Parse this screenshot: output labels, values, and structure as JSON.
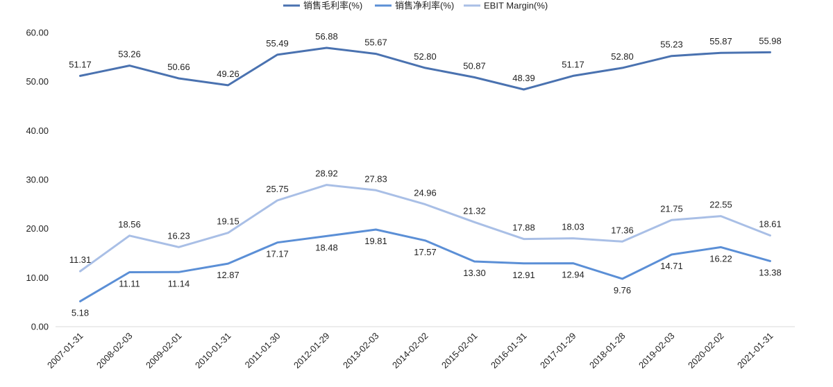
{
  "chart_data": {
    "type": "line",
    "categories": [
      "2007-01-31",
      "2008-02-03",
      "2009-02-01",
      "2010-01-31",
      "2011-01-30",
      "2012-01-29",
      "2013-02-03",
      "2014-02-02",
      "2015-02-01",
      "2016-01-31",
      "2017-01-29",
      "2018-01-28",
      "2019-02-03",
      "2020-02-02",
      "2021-01-31"
    ],
    "series": [
      {
        "name": "销售毛利率(%)",
        "color": "#4a72b0",
        "label_position": "above",
        "values": [
          51.17,
          53.26,
          50.66,
          49.26,
          55.49,
          56.88,
          55.67,
          52.8,
          50.87,
          48.39,
          51.17,
          52.8,
          55.23,
          55.87,
          55.98
        ],
        "labels": [
          "51.17",
          "53.26",
          "50.66",
          "49.26",
          "55.49",
          "56.88",
          "55.67",
          "52.80",
          "50.87",
          "48.39",
          "51.17",
          "52.80",
          "55.23",
          "55.87",
          "55.98"
        ]
      },
      {
        "name": "销售净利率(%)",
        "color": "#5b8fd6",
        "label_position": "below",
        "values": [
          5.18,
          11.11,
          11.14,
          12.87,
          17.17,
          18.48,
          19.81,
          17.57,
          13.3,
          12.91,
          12.94,
          9.76,
          14.71,
          16.22,
          13.38
        ],
        "labels": [
          "5.18",
          "11.11",
          "11.14",
          "12.87",
          "17.17",
          "18.48",
          "19.81",
          "17.57",
          "13.30",
          "12.91",
          "12.94",
          "9.76",
          "14.71",
          "16.22",
          "13.38"
        ]
      },
      {
        "name": "EBIT Margin(%)",
        "color": "#a9bfe6",
        "label_position": "above",
        "values": [
          11.31,
          18.56,
          16.23,
          19.15,
          25.75,
          28.92,
          27.83,
          24.96,
          21.32,
          17.88,
          18.03,
          17.36,
          21.75,
          22.55,
          18.61
        ],
        "labels": [
          "11.31",
          "18.56",
          "16.23",
          "19.15",
          "25.75",
          "28.92",
          "27.83",
          "24.96",
          "21.32",
          "17.88",
          "18.03",
          "17.36",
          "21.75",
          "22.55",
          "18.61"
        ]
      }
    ],
    "yticks": [
      "0.00",
      "10.00",
      "20.00",
      "30.00",
      "40.00",
      "50.00",
      "60.00"
    ],
    "ytick_values": [
      0,
      10,
      20,
      30,
      40,
      50,
      60
    ],
    "ylim": [
      0,
      60
    ],
    "title": "",
    "xlabel": "",
    "ylabel": "",
    "legend_position": "top-center",
    "grid": false
  }
}
